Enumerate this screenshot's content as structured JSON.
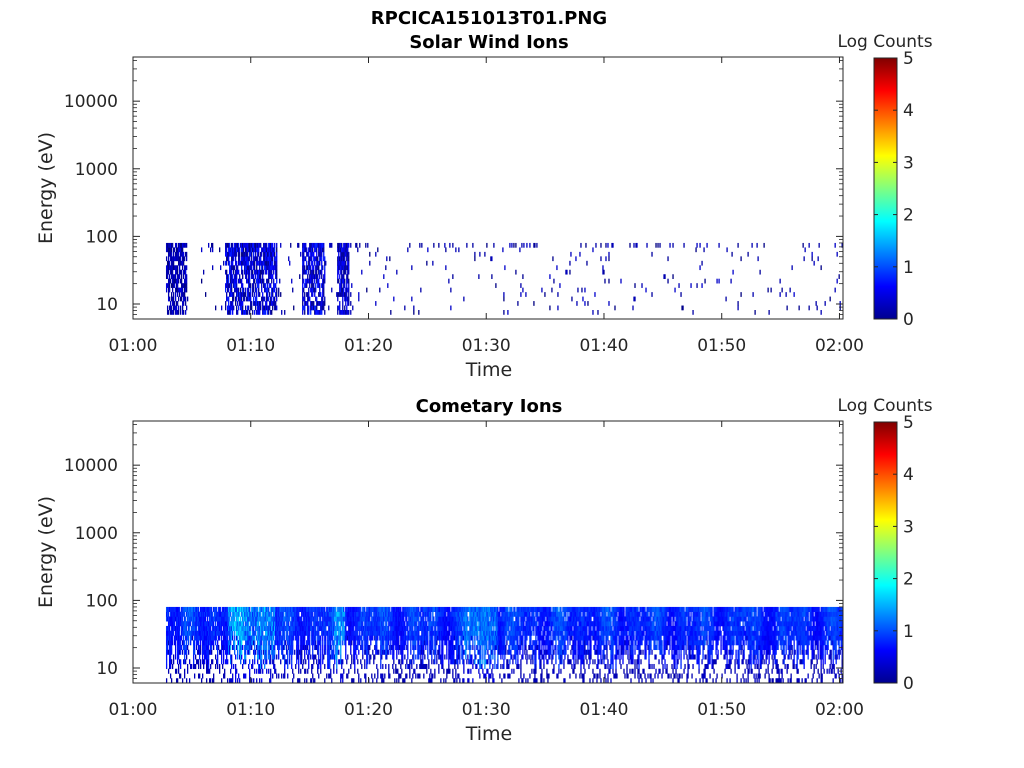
{
  "figure_title": "RPCICA151013T01.PNG",
  "colorbar": {
    "label": "Log Counts",
    "ticks": [
      "0",
      "1",
      "2",
      "3",
      "4",
      "5"
    ],
    "range": [
      0,
      5
    ],
    "colormap": "jet"
  },
  "chart_data": [
    {
      "type": "heatmap",
      "title": "Solar Wind Ions",
      "xlabel": "Time",
      "ylabel": "Energy (eV)",
      "x_ticks": [
        "01:00",
        "01:10",
        "01:20",
        "01:30",
        "01:40",
        "01:50",
        "02:00"
      ],
      "xlim_minutes": [
        0,
        60.3
      ],
      "y_scale": "log",
      "y_ticks": [
        "10",
        "100",
        "1000",
        "10000"
      ],
      "ylim": [
        6,
        45000
      ],
      "data_time_range_minutes": [
        2.8,
        60.3
      ],
      "data_energy_range_ev": [
        7,
        80
      ],
      "typical_log_counts": [
        0,
        0.8
      ],
      "active_intervals": [
        {
          "start_min": 2.8,
          "end_min": 4.5,
          "max_log_counts": 0.5
        },
        {
          "start_min": 7.8,
          "end_min": 12.2,
          "max_log_counts": 0.8
        },
        {
          "start_min": 14.3,
          "end_min": 16.3,
          "max_log_counts": 0.8
        },
        {
          "start_min": 17.3,
          "end_min": 18.3,
          "max_log_counts": 0.7
        }
      ]
    },
    {
      "type": "heatmap",
      "title": "Cometary Ions",
      "xlabel": "Time",
      "ylabel": "Energy (eV)",
      "x_ticks": [
        "01:00",
        "01:10",
        "01:20",
        "01:30",
        "01:40",
        "01:50",
        "02:00"
      ],
      "xlim_minutes": [
        0,
        60.3
      ],
      "y_scale": "log",
      "y_ticks": [
        "10",
        "100",
        "1000",
        "10000"
      ],
      "ylim": [
        6,
        45000
      ],
      "data_time_range_minutes": [
        2.8,
        60.3
      ],
      "data_energy_range_ev": [
        6,
        80
      ],
      "typical_log_counts": [
        0.3,
        1.5
      ],
      "peak_intervals": [
        {
          "start_min": 8,
          "end_min": 12,
          "max_log_counts": 1.8
        },
        {
          "start_min": 17,
          "end_min": 18,
          "max_log_counts": 1.5
        },
        {
          "start_min": 28,
          "end_min": 31,
          "max_log_counts": 1.3
        }
      ]
    }
  ]
}
